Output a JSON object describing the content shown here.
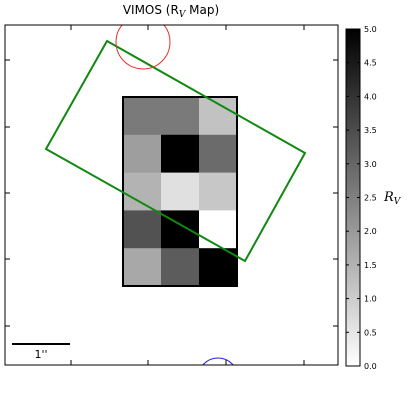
{
  "chart_data": {
    "type": "heatmap",
    "title": "VIMOS (R",
    "title_sub": "V",
    "title_suffix": " Map)",
    "colorbar_label": "R",
    "colorbar_label_sub": "V",
    "colormap": "Greys",
    "vmin": 0.0,
    "vmax": 5.0,
    "colorbar_ticks": [
      "0.0",
      "0.5",
      "1.0",
      "1.5",
      "2.0",
      "2.5",
      "3.0",
      "3.5",
      "4.0",
      "4.5",
      "5.0"
    ],
    "grid_rows": 5,
    "grid_cols": 3,
    "values": [
      [
        2.6,
        2.6,
        1.2
      ],
      [
        1.9,
        5.0,
        2.9
      ],
      [
        1.5,
        0.6,
        1.1
      ],
      [
        3.4,
        5.0,
        0.0
      ],
      [
        1.7,
        3.2,
        5.0
      ]
    ],
    "scale_bar_label": "1''",
    "colors": {
      "slit": "#118811",
      "circle_top": "#e83030",
      "circle_bottom": "#2020dd",
      "frame": "#000000"
    }
  }
}
